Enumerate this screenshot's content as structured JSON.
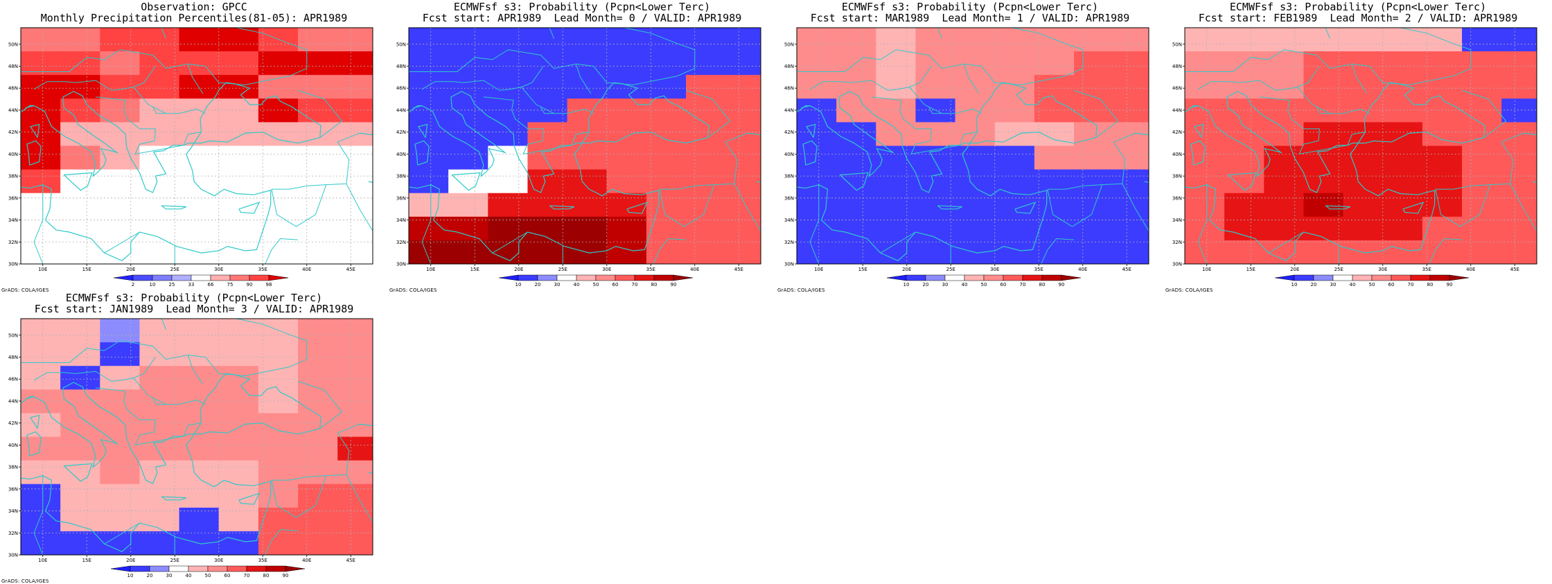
{
  "legend_common": {
    "obs_ticks": [
      "2",
      "10",
      "25",
      "33",
      "66",
      "75",
      "90",
      "98"
    ],
    "obs_colors": [
      "#2323ff",
      "#4c4cff",
      "#7e7eff",
      "#b0b0ff",
      "#ffffff",
      "#ffb0b0",
      "#ff7878",
      "#ff4343",
      "#e00000"
    ],
    "fcst_ticks": [
      "10",
      "20",
      "30",
      "40",
      "50",
      "60",
      "70",
      "80",
      "90"
    ],
    "fcst_colors": [
      "#1e1eff",
      "#3c3cff",
      "#8c8cff",
      "#ffffff",
      "#ffb4b4",
      "#ff8c8c",
      "#ff5a5a",
      "#e61414",
      "#c00000",
      "#9c0000"
    ]
  },
  "map_common": {
    "lat_labels": [
      "50N",
      "48N",
      "46N",
      "44N",
      "42N",
      "40N",
      "38N",
      "36N",
      "34N",
      "32N",
      "30N"
    ],
    "lon_labels": [
      "10E",
      "15E",
      "20E",
      "25E",
      "30E",
      "35E",
      "40E",
      "45E"
    ],
    "credit": "GrADS: COLA/IGES",
    "lon_range": [
      7.5,
      47.5
    ],
    "lat_range": [
      30,
      51.5
    ],
    "cell_size_deg": 2.5
  },
  "panels": [
    {
      "name": "obs-gpcc",
      "title1": "Observation: GPCC",
      "title2": "Monthly Precipitation Percentiles(81-05): APR1989",
      "legend_type": "obs",
      "grid": [
        "667788766",
        "776777888",
        "887788666",
        "876555877",
        "855555555",
        "865444444",
        "744444444",
        "444444444",
        "444444444",
        "444444444"
      ]
    },
    {
      "name": "fcst-lead0",
      "title1": "ECMWFsf s3: Probability (Pcpn<Lower Terc)",
      "title2": "Fcst start: APR1989  Lead Month= 0 / VALID: APR1989",
      "legend_type": "fcst",
      "grid": [
        "111111111",
        "111111111",
        "111111166",
        "111166666",
        "111666666",
        "113666666",
        "133776666",
        "447777666",
        "889998666",
        "999998666"
      ]
    },
    {
      "name": "fcst-lead1",
      "title1": "ECMWFsf s3: Probability (Pcpn<Lower Terc)",
      "title2": "Fcst start: MAR1989  Lead Month= 1 / VALID: APR1989",
      "legend_type": "fcst",
      "grid": [
        "554555555",
        "554555566",
        "554555666",
        "155155666",
        "115554455",
        "111111555",
        "111111111",
        "111111111",
        "111111111",
        "111111111"
      ]
    },
    {
      "name": "fcst-lead2",
      "title1": "ECMWFsf s3: Probability (Pcpn<Lower Terc)",
      "title2": "Fcst start: FEB1989  Lead Month= 2 / VALID: APR1989",
      "legend_type": "fcst",
      "grid": [
        "444444411",
        "555666666",
        "555666666",
        "666666661",
        "666777666",
        "667777766",
        "667777766",
        "677877766",
        "677777666",
        "666666666"
      ]
    },
    {
      "name": "fcst-lead3",
      "title1": "ECMWFsf s3: Probability (Pcpn<Lower Terc)",
      "title2": "Fcst start: JAN1989  Lead Month= 3 / VALID: APR1989",
      "legend_type": "fcst",
      "grid": [
        "442444455",
        "441444455",
        "414555455",
        "555555455",
        "455555555",
        "555555557",
        "445444555",
        "144444566",
        "144414666",
        "111111666"
      ]
    }
  ]
}
